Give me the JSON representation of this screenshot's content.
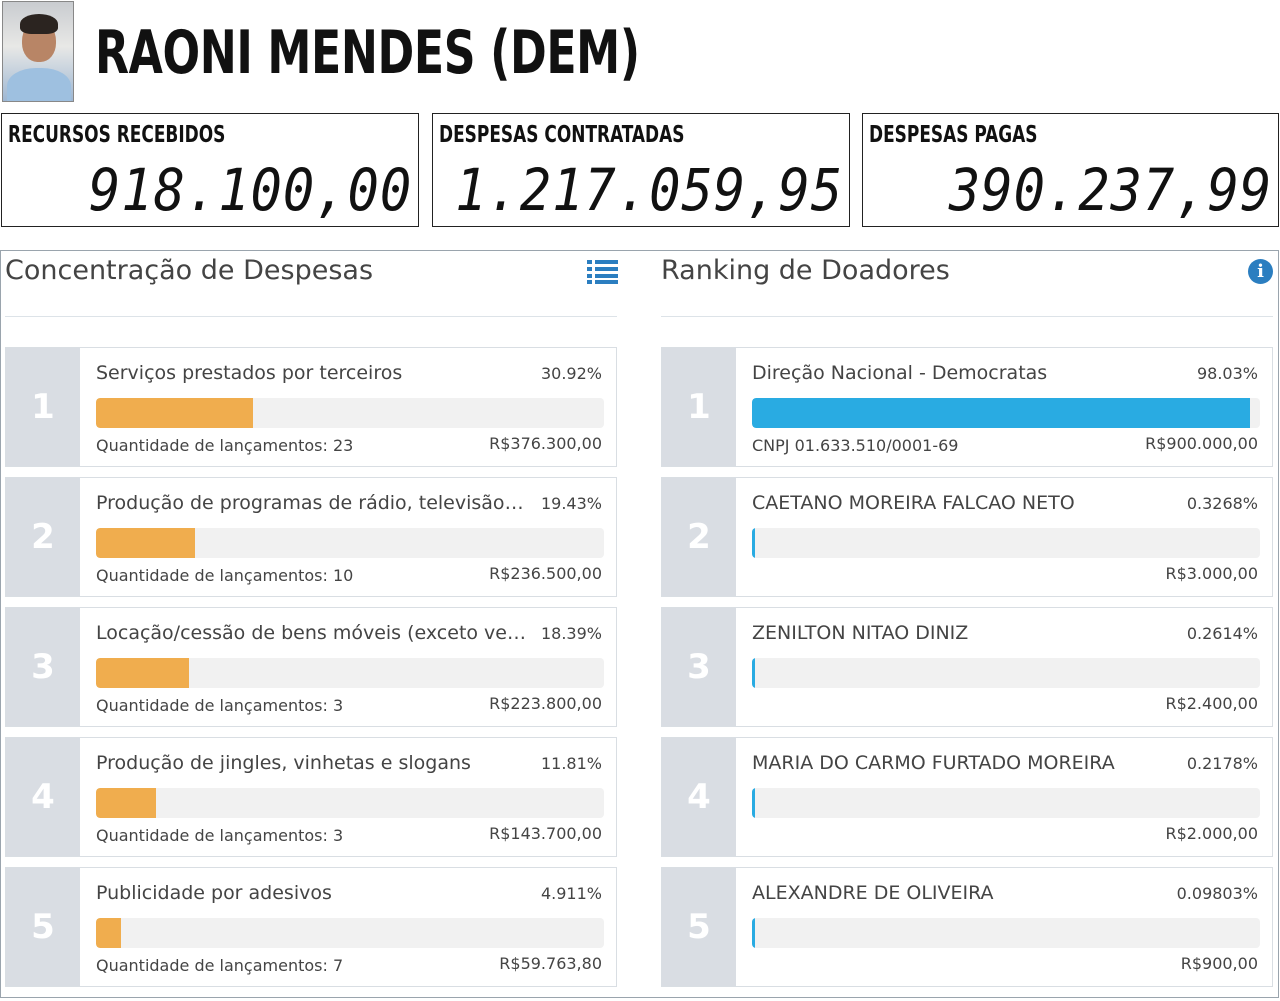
{
  "header": {
    "title": "RAONI MENDES (DEM)"
  },
  "stats": [
    {
      "label": "RECURSOS RECEBIDOS",
      "value": "918.100,00"
    },
    {
      "label": "DESPESAS CONTRATADAS",
      "value": "1.217.059,95"
    },
    {
      "label": "DESPESAS PAGAS",
      "value": "390.237,99"
    }
  ],
  "colors": {
    "expense_bar": "#f0ad4e",
    "donor_bar": "#29abe2",
    "icon_blue": "#2b7ec0"
  },
  "expenses": {
    "title": "Concentração de Despesas",
    "icon": "list-icon",
    "items": [
      {
        "rank": "1",
        "label": "Serviços prestados por terceiros",
        "pct": "30.92%",
        "fraction": 0.3092,
        "sub": "Quantidade de lançamentos: 23",
        "value": "R$376.300,00"
      },
      {
        "rank": "2",
        "label": "Produção de programas de rádio, televisão ...",
        "pct": "19.43%",
        "fraction": 0.1943,
        "sub": "Quantidade de lançamentos: 10",
        "value": "R$236.500,00"
      },
      {
        "rank": "3",
        "label": "Locação/cessão de bens móveis (exceto veí...",
        "pct": "18.39%",
        "fraction": 0.1839,
        "sub": "Quantidade de lançamentos: 3",
        "value": "R$223.800,00"
      },
      {
        "rank": "4",
        "label": "Produção de jingles, vinhetas e slogans",
        "pct": "11.81%",
        "fraction": 0.1181,
        "sub": "Quantidade de lançamentos: 3",
        "value": "R$143.700,00"
      },
      {
        "rank": "5",
        "label": "Publicidade por adesivos",
        "pct": "4.911%",
        "fraction": 0.04911,
        "sub": "Quantidade de lançamentos: 7",
        "value": "R$59.763,80"
      }
    ]
  },
  "donors": {
    "title": "Ranking de Doadores",
    "icon": "info-icon",
    "items": [
      {
        "rank": "1",
        "label": "Direção Nacional - Democratas",
        "pct": "98.03%",
        "fraction": 0.9803,
        "sub": "CNPJ 01.633.510/0001-69",
        "value": "R$900.000,00"
      },
      {
        "rank": "2",
        "label": "CAETANO MOREIRA FALCAO NETO",
        "pct": "0.3268%",
        "fraction": 0.003268,
        "sub": "",
        "value": "R$3.000,00"
      },
      {
        "rank": "3",
        "label": "ZENILTON NITAO DINIZ",
        "pct": "0.2614%",
        "fraction": 0.002614,
        "sub": "",
        "value": "R$2.400,00"
      },
      {
        "rank": "4",
        "label": "MARIA DO CARMO FURTADO MOREIRA",
        "pct": "0.2178%",
        "fraction": 0.002178,
        "sub": "",
        "value": "R$2.000,00"
      },
      {
        "rank": "5",
        "label": "ALEXANDRE DE OLIVEIRA",
        "pct": "0.09803%",
        "fraction": 0.0009803,
        "sub": "",
        "value": "R$900,00"
      }
    ]
  }
}
